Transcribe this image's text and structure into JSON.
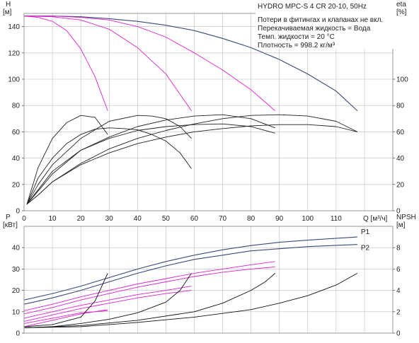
{
  "header": {
    "title": "HYDRO MPC-S 4 CR 20-10, 50Hz",
    "notes": [
      "Потери в фитингах и клапанах не вкл.",
      "Перекачиваемая жидкость = Вода",
      "Темп. жидкости = 20 °C",
      "Плотность = 998.2 кг/м³"
    ]
  },
  "colors": {
    "head": "#3b4a78",
    "head_stages": "#e020d0",
    "eta": "#222222",
    "power": "#3b4a78",
    "power_stages": "#e020d0",
    "npsh": "#111111"
  },
  "chart_data": [
    {
      "type": "line",
      "name": "head-efficiency",
      "xlabel": "Q [м³/ч]",
      "ylabel_left": [
        "H",
        "[м]"
      ],
      "ylabel_right": [
        "eta",
        "[%]"
      ],
      "xlim": [
        0,
        130
      ],
      "ylim_left": [
        0,
        150
      ],
      "ylim_right": [
        0,
        150
      ],
      "x_ticks": [
        0,
        10,
        20,
        30,
        40,
        50,
        60,
        70,
        80,
        90,
        100,
        110
      ],
      "y_ticks_left": [
        0,
        20,
        40,
        60,
        80,
        100,
        120,
        140
      ],
      "y_ticks_right": [
        0,
        20,
        40,
        60,
        80,
        100
      ],
      "grid": true,
      "series": [
        {
          "group": "head",
          "x": [
            0,
            10,
            20,
            30,
            40,
            50,
            60,
            70,
            80,
            90,
            100,
            110,
            117.5
          ],
          "y": [
            148,
            148,
            147.5,
            146,
            144,
            141,
            137,
            131,
            124,
            115,
            104,
            91,
            76
          ]
        },
        {
          "group": "head_stage",
          "x": [
            0,
            5,
            10,
            15,
            20,
            25,
            29.5
          ],
          "y": [
            148,
            147,
            144,
            137,
            123,
            102,
            76
          ]
        },
        {
          "group": "head_stage",
          "x": [
            0,
            10,
            20,
            30,
            40,
            50,
            59
          ],
          "y": [
            148,
            147.5,
            145,
            138,
            124,
            104,
            76
          ]
        },
        {
          "group": "head_stage",
          "x": [
            0,
            10,
            20,
            30,
            40,
            50,
            60,
            70,
            80,
            88.5
          ],
          "y": [
            148,
            148,
            147,
            145,
            140,
            132,
            120,
            107,
            92,
            76
          ]
        },
        {
          "group": "eta",
          "x": [
            1,
            5,
            10,
            15,
            20,
            25,
            29.5
          ],
          "y": [
            5,
            33,
            55,
            67,
            72.5,
            71,
            58
          ]
        },
        {
          "group": "eta",
          "x": [
            1,
            5,
            10,
            15,
            20,
            25,
            30,
            35,
            40,
            45,
            50,
            55,
            59
          ],
          "y": [
            5,
            25,
            40,
            51,
            58,
            62,
            63,
            62.5,
            61.5,
            58,
            53,
            44,
            32
          ]
        },
        {
          "group": "eta",
          "x": [
            1,
            5,
            10,
            20,
            30,
            40,
            45,
            50,
            55,
            59
          ],
          "y": [
            5,
            20,
            35,
            55,
            68,
            72.5,
            72,
            70,
            64,
            55
          ]
        },
        {
          "group": "eta",
          "x": [
            1,
            5,
            10,
            20,
            30,
            40,
            50,
            60,
            70,
            80,
            88.5
          ],
          "y": [
            5,
            16,
            30,
            46,
            55,
            61,
            64,
            65.5,
            66,
            64,
            59
          ]
        },
        {
          "group": "eta",
          "x": [
            1,
            5,
            10,
            20,
            30,
            40,
            50,
            60,
            70,
            80,
            88.5
          ],
          "y": [
            5,
            15,
            28,
            46,
            56,
            64,
            69,
            72,
            73,
            70,
            63
          ]
        },
        {
          "group": "eta",
          "x": [
            1,
            5,
            10,
            20,
            30,
            40,
            50,
            60,
            70,
            80,
            90,
            100,
            110,
            117.5
          ],
          "y": [
            5,
            12,
            22,
            35,
            44,
            51,
            56,
            60,
            62.5,
            64.5,
            65.5,
            65.5,
            64,
            60
          ]
        },
        {
          "group": "eta",
          "x": [
            1,
            5,
            10,
            20,
            30,
            40,
            50,
            60,
            70,
            80,
            90,
            100,
            110,
            117.5
          ],
          "y": [
            5,
            12,
            22,
            36,
            47,
            55,
            61,
            66,
            70,
            72.5,
            73,
            72,
            68,
            60
          ]
        }
      ]
    },
    {
      "type": "line",
      "name": "power-npsh",
      "ylabel_left": [
        "P",
        "[кВт]"
      ],
      "ylabel_right": [
        "NPSH",
        "[м]"
      ],
      "xlim": [
        0,
        130
      ],
      "ylim_left": [
        0,
        50
      ],
      "ylim_right": [
        0,
        10
      ],
      "y_ticks_left": [
        0,
        10,
        20,
        30,
        40
      ],
      "y_ticks_right": [
        0,
        2,
        4,
        6,
        8
      ],
      "grid": true,
      "series": [
        {
          "group": "power",
          "name": "P1",
          "x": [
            0,
            10,
            20,
            30,
            40,
            50,
            60,
            70,
            80,
            90,
            100,
            117.5
          ],
          "y": [
            15.5,
            18.5,
            22,
            26,
            30,
            33.5,
            36.5,
            39,
            41,
            42.5,
            43.5,
            45
          ]
        },
        {
          "group": "power",
          "name": "P2",
          "x": [
            0,
            10,
            20,
            30,
            40,
            50,
            60,
            70,
            80,
            90,
            100,
            117.5
          ],
          "y": [
            13.5,
            16.5,
            20,
            24,
            28,
            31.5,
            34.5,
            36.5,
            38.5,
            39.5,
            40.5,
            41.5
          ]
        },
        {
          "group": "power_stage",
          "x": [
            0,
            10,
            20,
            29.5
          ],
          "y": [
            3,
            6,
            9,
            11
          ]
        },
        {
          "group": "power_stage",
          "x": [
            0,
            10,
            20,
            29.5
          ],
          "y": [
            4.5,
            7,
            9.5,
            10.5
          ]
        },
        {
          "group": "power_stage",
          "x": [
            0,
            10,
            20,
            30,
            40,
            50,
            59
          ],
          "y": [
            7,
            10,
            13,
            15.5,
            18,
            20,
            22
          ]
        },
        {
          "group": "power_stage",
          "x": [
            0,
            10,
            20,
            30,
            40,
            50,
            59
          ],
          "y": [
            5.5,
            8.5,
            11.5,
            14,
            16.5,
            18.5,
            20
          ]
        },
        {
          "group": "power_stage",
          "x": [
            0,
            10,
            20,
            30,
            40,
            50,
            60,
            70,
            80,
            88.5
          ],
          "y": [
            10.5,
            13.5,
            17,
            20,
            23,
            25.5,
            28,
            30,
            32,
            33.5
          ]
        },
        {
          "group": "power_stage",
          "x": [
            0,
            10,
            20,
            30,
            40,
            50,
            60,
            70,
            80,
            88.5
          ],
          "y": [
            9,
            12,
            15.5,
            18.5,
            21.5,
            24,
            26.5,
            28.5,
            30,
            31
          ]
        },
        {
          "group": "npsh",
          "x": [
            0,
            10,
            20,
            25,
            29.5
          ],
          "y": [
            0.6,
            0.8,
            1.5,
            3.0,
            5.6
          ]
        },
        {
          "group": "npsh",
          "x": [
            0,
            10,
            20,
            30,
            40,
            50,
            55,
            59
          ],
          "y": [
            0.5,
            0.6,
            0.9,
            1.3,
            1.9,
            2.9,
            4.0,
            5.6
          ]
        },
        {
          "group": "npsh",
          "x": [
            0,
            20,
            40,
            60,
            70,
            80,
            85,
            88.5
          ],
          "y": [
            0.5,
            0.7,
            1.2,
            2.0,
            2.8,
            4.0,
            4.8,
            5.6
          ]
        },
        {
          "group": "npsh",
          "x": [
            0,
            20,
            40,
            60,
            80,
            90,
            100,
            110,
            117.5
          ],
          "y": [
            0.5,
            0.6,
            1.0,
            1.5,
            2.2,
            2.8,
            3.5,
            4.5,
            5.6
          ]
        }
      ]
    }
  ]
}
